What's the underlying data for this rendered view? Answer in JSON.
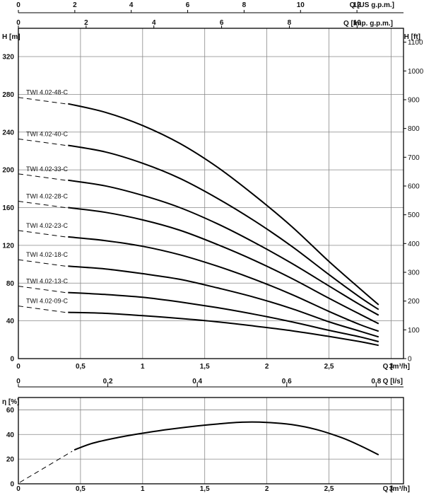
{
  "chart_data": [
    {
      "type": "line",
      "title": "",
      "top_axis_us": {
        "label": "Q [US g.p.m.]",
        "ticks": [
          0,
          2,
          4,
          6,
          8,
          10,
          12
        ],
        "max": 13.65
      },
      "top_axis_imp": {
        "label": "Q [Imp. g.p.m.]",
        "ticks": [
          0,
          2,
          4,
          6,
          8,
          10
        ],
        "max": 11.37
      },
      "xlabel": "Q [m³/h]",
      "xticks": [
        0,
        0.5,
        1,
        1.5,
        2,
        2.5,
        3
      ],
      "xtick_labels": [
        "0",
        "0,5",
        "1",
        "1,5",
        "2",
        "2,5",
        "3"
      ],
      "xlim": [
        0,
        3.1
      ],
      "ylabel_left": "H [m]",
      "yticks_left": [
        0,
        40,
        80,
        120,
        160,
        200,
        240,
        280,
        320
      ],
      "ylim": [
        0,
        350
      ],
      "ylabel_right": "H [ft]",
      "yticks_right": [
        0,
        100,
        200,
        300,
        400,
        500,
        600,
        700,
        800,
        900,
        1000,
        1100
      ],
      "grid": true,
      "series": [
        {
          "name": "TWI 4.02-48-C",
          "x": [
            0.4,
            0.7,
            1.0,
            1.3,
            1.6,
            1.9,
            2.2,
            2.5,
            2.75,
            2.9
          ],
          "y": [
            270,
            261,
            247,
            228,
            203,
            173,
            140,
            103,
            74,
            57
          ]
        },
        {
          "name": "TWI 4.02-40-C",
          "x": [
            0.4,
            0.7,
            1.0,
            1.3,
            1.6,
            1.9,
            2.2,
            2.5,
            2.75,
            2.9
          ],
          "y": [
            226,
            219,
            207,
            191,
            170,
            146,
            119,
            89,
            65,
            52
          ]
        },
        {
          "name": "TWI 4.02-33-C",
          "x": [
            0.4,
            0.7,
            1.0,
            1.3,
            1.6,
            1.9,
            2.2,
            2.5,
            2.75,
            2.9
          ],
          "y": [
            189,
            183,
            173,
            160,
            143,
            123,
            101,
            77,
            57,
            46
          ]
        },
        {
          "name": "TWI 4.02-28-C",
          "x": [
            0.4,
            0.7,
            1.0,
            1.3,
            1.6,
            1.9,
            2.2,
            2.5,
            2.75,
            2.9
          ],
          "y": [
            160,
            155,
            147,
            136,
            121,
            104,
            85,
            64,
            47,
            37
          ]
        },
        {
          "name": "TWI 4.02-23-C",
          "x": [
            0.4,
            0.7,
            1.0,
            1.3,
            1.6,
            1.9,
            2.2,
            2.5,
            2.75,
            2.9
          ],
          "y": [
            129,
            125,
            119,
            110,
            98,
            84,
            68,
            50,
            36,
            29
          ]
        },
        {
          "name": "TWI 4.02-18-C",
          "x": [
            0.4,
            0.7,
            1.0,
            1.3,
            1.6,
            1.9,
            2.2,
            2.5,
            2.75,
            2.9
          ],
          "y": [
            98,
            95,
            90,
            84,
            75,
            65,
            53,
            39,
            29,
            23
          ]
        },
        {
          "name": "TWI 4.02-13-C",
          "x": [
            0.4,
            0.7,
            1.0,
            1.3,
            1.6,
            1.9,
            2.2,
            2.5,
            2.75,
            2.9
          ],
          "y": [
            70,
            68,
            65,
            60,
            54,
            47,
            39,
            30,
            23,
            18
          ]
        },
        {
          "name": "TWI 4.02-09-C",
          "x": [
            0.4,
            0.7,
            1.0,
            1.3,
            1.6,
            1.9,
            2.2,
            2.5,
            2.75,
            2.9
          ],
          "y": [
            49,
            48,
            45.5,
            42.5,
            39,
            34.5,
            29.5,
            23.5,
            18,
            14
          ]
        }
      ]
    },
    {
      "type": "line",
      "secondary_xlabel": "Q [l/s]",
      "secondary_xticks": [
        0,
        0.2,
        0.4,
        0.6,
        0.8
      ],
      "secondary_xtick_labels": [
        "0",
        "0,2",
        "0,4",
        "0,6",
        "0,8"
      ],
      "xlabel": "Q [m³/h]",
      "xticks": [
        0,
        0.5,
        1,
        1.5,
        2,
        2.5,
        3
      ],
      "xtick_labels": [
        "0",
        "0,5",
        "1",
        "1,5",
        "2",
        "2,5",
        "3"
      ],
      "xlim": [
        0,
        3.1
      ],
      "ylabel": "η [%]",
      "yticks": [
        0,
        20,
        40,
        60
      ],
      "ylim": [
        0,
        70
      ],
      "grid": true,
      "series": [
        {
          "name": "",
          "x": [
            0.45,
            0.6,
            0.8,
            1.0,
            1.2,
            1.4,
            1.6,
            1.8,
            2.0,
            2.2,
            2.4,
            2.6,
            2.75,
            2.9
          ],
          "y": [
            27.5,
            33,
            37.5,
            41,
            44,
            46.5,
            48.5,
            50,
            49.8,
            48,
            44,
            37.5,
            31,
            23.5
          ]
        }
      ]
    }
  ]
}
